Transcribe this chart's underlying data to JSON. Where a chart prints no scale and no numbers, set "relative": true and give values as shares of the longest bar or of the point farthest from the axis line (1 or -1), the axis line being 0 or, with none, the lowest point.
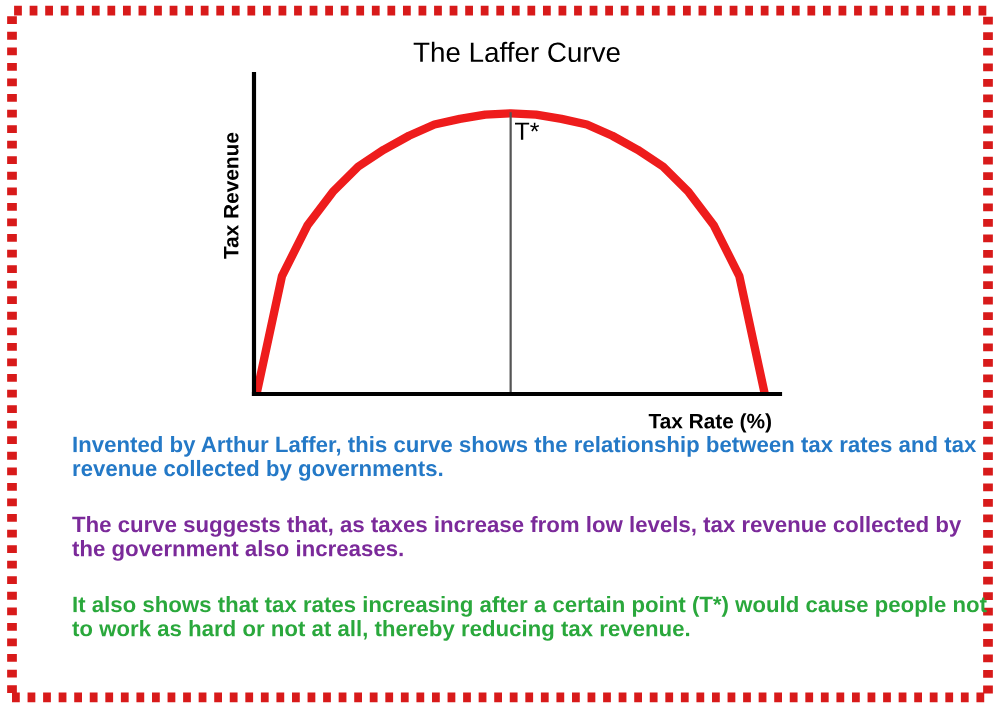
{
  "chart_data": {
    "type": "line",
    "title": "The Laffer Curve",
    "xlabel": "Tax Rate (%)",
    "ylabel": "Tax Revenue",
    "relative": true,
    "categories": [
      null,
      null,
      null,
      null,
      null,
      null,
      null,
      null,
      null,
      null,
      null,
      null,
      null,
      null,
      null,
      null,
      null,
      null,
      null,
      null,
      null
    ],
    "series": [
      {
        "color": "#ee1c1c",
        "values": [
          0,
          0.42,
          0.6,
          0.72,
          0.81,
          0.87,
          0.92,
          0.96,
          0.98,
          0.995,
          1,
          0.995,
          0.98,
          0.96,
          0.92,
          0.87,
          0.81,
          0.72,
          0.6,
          0.42,
          0
        ]
      }
    ],
    "annotations": [
      {
        "text": "T*",
        "y": 1
      },
      "Invented by Arthur Laffer, this curve shows the relationship between tax rates and tax revenue collected by governments.",
      "The curve suggests that, as taxes increase from low levels, tax revenue collected by the government also increases.",
      "It also shows that tax rates increasing after a certain point (T*) would cause people not to work as hard or not at all, thereby reducing tax revenue."
    ]
  }
}
